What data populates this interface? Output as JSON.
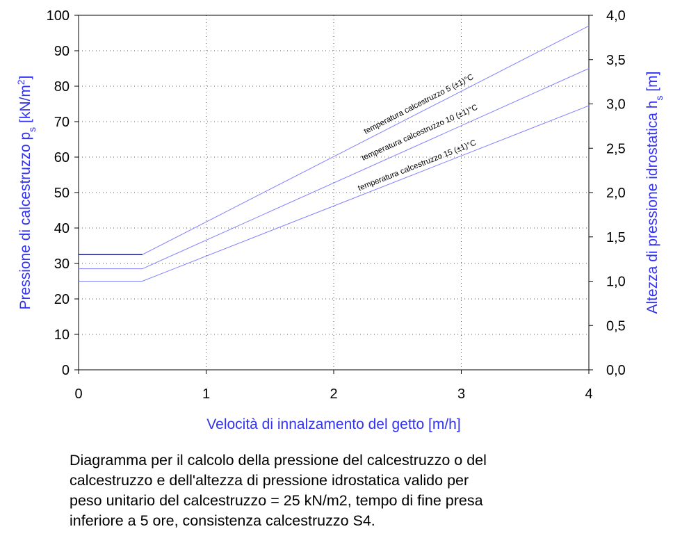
{
  "chart_data": {
    "type": "line",
    "xlabel": "Velocità di innalzamento del getto [m/h]",
    "ylabel_left_main": "Pressione di calcestruzzo p",
    "ylabel_left_sub": "s",
    "ylabel_left_unit_a": " [kN/m",
    "ylabel_left_unit_sup": "2",
    "ylabel_left_unit_b": "]",
    "ylabel_right_main": "Altezza di pressione idrostatica h",
    "ylabel_right_sub": "s",
    "ylabel_right_unit": " [m]",
    "xlim": [
      0,
      4
    ],
    "ylim_left": [
      0,
      100
    ],
    "ylim_right": [
      0,
      4
    ],
    "x_ticks": [
      "0",
      "1",
      "2",
      "3",
      "4"
    ],
    "x_tick_values": [
      0,
      1,
      2,
      3,
      4
    ],
    "y_left_ticks": [
      "0",
      "10",
      "20",
      "30",
      "40",
      "50",
      "60",
      "70",
      "80",
      "90",
      "100"
    ],
    "y_left_tick_values": [
      0,
      10,
      20,
      30,
      40,
      50,
      60,
      70,
      80,
      90,
      100
    ],
    "y_right_ticks": [
      "0,0",
      "0,5",
      "1,0",
      "1,5",
      "2,0",
      "2,5",
      "3,0",
      "3,5",
      "4,0"
    ],
    "y_right_tick_values": [
      0,
      0.5,
      1,
      1.5,
      2,
      2.5,
      3,
      3.5,
      4
    ],
    "grid": true,
    "colors": {
      "curves": "#8080ff",
      "axis_titles": "#3333ee",
      "plateau": "#000080",
      "grid": "#555555"
    },
    "series": [
      {
        "name": "temperatura calcestruzzo 5 (±1)°C",
        "x": [
          0,
          0.5,
          4
        ],
        "y": [
          32.5,
          32.5,
          97
        ],
        "label_at": [
          2.25,
          66.5
        ]
      },
      {
        "name": "temperatura calcestruzzo 10 (±1)°C",
        "x": [
          0,
          0.5,
          4
        ],
        "y": [
          28.5,
          28.5,
          85
        ],
        "label_at": [
          2.23,
          59
        ]
      },
      {
        "name": "temperatura calcestruzzo 15 (±1)°C",
        "x": [
          0,
          0.5,
          4
        ],
        "y": [
          25,
          25,
          74.5
        ],
        "label_at": [
          2.2,
          50.5
        ]
      }
    ]
  },
  "caption": {
    "lines": [
      "Diagramma per il calcolo della pressione del calcestruzzo o del",
      "calcestruzzo e dell'altezza di pressione idrostatica valido per",
      "peso unitario del calcestruzzo = 25 kN/m2, tempo di fine presa",
      "inferiore a 5 ore, consistenza calcestruzzo S4."
    ]
  }
}
